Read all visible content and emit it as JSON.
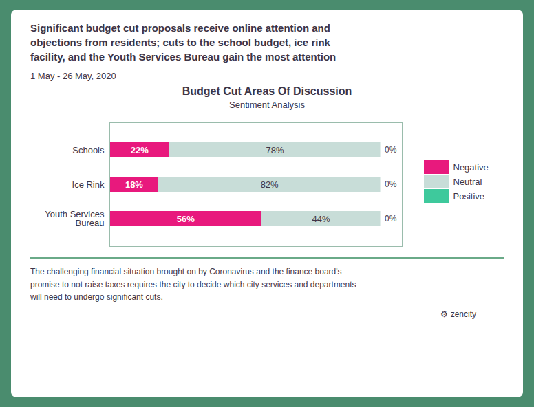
{
  "chart_data": {
    "type": "bar",
    "orientation": "horizontal",
    "stacked": true,
    "title": "Budget Cut Areas Of Discussion",
    "subtitle": "Sentiment Analysis",
    "annotations": [
      "Significant budget cut proposals receive online attention and\nobjections from residents; cuts to the school budget, ice rink\nfacility, and the Youth Services Bureau gain the most attention",
      "1 May - 26 May, 2020",
      "The challenging financial situation brought on by Coronavirus and the finance board's\npromise to not raise taxes requires the city to decide which city services and departments\nwill need to undergo significant cuts.",
      "⚙ zencity"
    ],
    "categories": [
      "Schools",
      "Ice Rink",
      "Youth Services\nBureau"
    ],
    "series": [
      {
        "name": "Negative",
        "color": "#E8197D",
        "values": [
          22,
          18,
          56
        ],
        "value_labels": [
          "22%",
          "18%",
          "56%"
        ]
      },
      {
        "name": "Neutral",
        "color": "#C8DDD8",
        "values": [
          78,
          82,
          44
        ],
        "value_labels": [
          "78%",
          "82%",
          "44%"
        ]
      },
      {
        "name": "Positive",
        "color": "#3EC99C",
        "values": [
          0,
          0,
          0
        ],
        "value_labels": [
          "0%",
          "0%",
          "0%"
        ]
      }
    ],
    "xlim": [
      0,
      108
    ],
    "xticks": [],
    "tick_labels": "y",
    "data_labels": true,
    "grid": false,
    "legend": "right"
  }
}
